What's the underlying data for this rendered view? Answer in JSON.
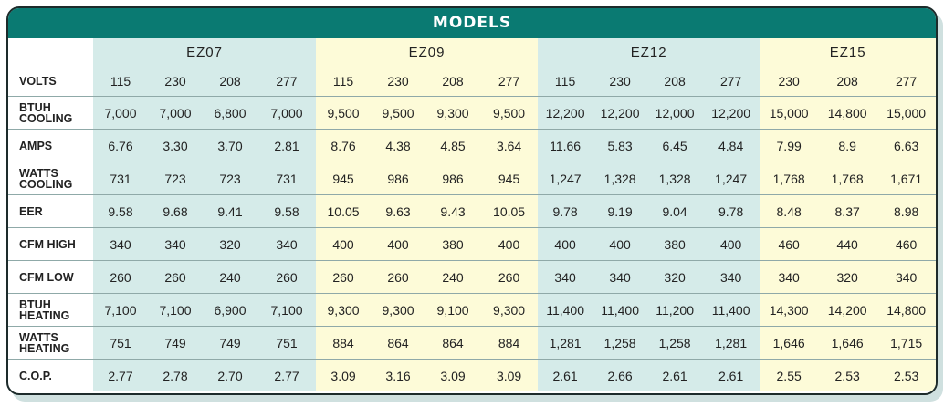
{
  "title": "MODELS",
  "volts_label": "VOLTS",
  "models": [
    {
      "name": "EZ07",
      "volts": [
        "115",
        "230",
        "208",
        "277"
      ]
    },
    {
      "name": "EZ09",
      "volts": [
        "115",
        "230",
        "208",
        "277"
      ]
    },
    {
      "name": "EZ12",
      "volts": [
        "115",
        "230",
        "208",
        "277"
      ]
    },
    {
      "name": "EZ15",
      "volts": [
        "230",
        "208",
        "277"
      ]
    }
  ],
  "rows": [
    {
      "label": "BTUH COOLING",
      "values": [
        "7,000",
        "7,000",
        "6,800",
        "7,000",
        "9,500",
        "9,500",
        "9,300",
        "9,500",
        "12,200",
        "12,200",
        "12,000",
        "12,200",
        "15,000",
        "14,800",
        "15,000"
      ]
    },
    {
      "label": "AMPS",
      "values": [
        "6.76",
        "3.30",
        "3.70",
        "2.81",
        "8.76",
        "4.38",
        "4.85",
        "3.64",
        "11.66",
        "5.83",
        "6.45",
        "4.84",
        "7.99",
        "8.9",
        "6.63"
      ]
    },
    {
      "label": "WATTS COOLING",
      "values": [
        "731",
        "723",
        "723",
        "731",
        "945",
        "986",
        "986",
        "945",
        "1,247",
        "1,328",
        "1,328",
        "1,247",
        "1,768",
        "1,768",
        "1,671"
      ]
    },
    {
      "label": "EER",
      "values": [
        "9.58",
        "9.68",
        "9.41",
        "9.58",
        "10.05",
        "9.63",
        "9.43",
        "10.05",
        "9.78",
        "9.19",
        "9.04",
        "9.78",
        "8.48",
        "8.37",
        "8.98"
      ]
    },
    {
      "label": "CFM HIGH",
      "values": [
        "340",
        "340",
        "320",
        "340",
        "400",
        "400",
        "380",
        "400",
        "400",
        "400",
        "380",
        "400",
        "460",
        "440",
        "460"
      ]
    },
    {
      "label": "CFM LOW",
      "values": [
        "260",
        "260",
        "240",
        "260",
        "260",
        "260",
        "240",
        "260",
        "340",
        "340",
        "320",
        "340",
        "340",
        "320",
        "340"
      ]
    },
    {
      "label": "BTUH HEATING",
      "values": [
        "7,100",
        "7,100",
        "6,900",
        "7,100",
        "9,300",
        "9,300",
        "9,100",
        "9,300",
        "11,400",
        "11,400",
        "11,200",
        "11,400",
        "14,300",
        "14,200",
        "14,800"
      ]
    },
    {
      "label": "WATTS HEATING",
      "values": [
        "751",
        "749",
        "749",
        "751",
        "884",
        "864",
        "864",
        "884",
        "1,281",
        "1,258",
        "1,258",
        "1,281",
        "1,646",
        "1,646",
        "1,715"
      ]
    },
    {
      "label": "C.O.P.",
      "values": [
        "2.77",
        "2.78",
        "2.70",
        "2.77",
        "3.09",
        "3.16",
        "3.09",
        "3.09",
        "2.61",
        "2.66",
        "2.61",
        "2.61",
        "2.55",
        "2.53",
        "2.53"
      ]
    }
  ],
  "colors": {
    "title_bar": "#0a7a72",
    "group_teal": "#d5ebe9",
    "group_yellow": "#fdfbd8"
  }
}
